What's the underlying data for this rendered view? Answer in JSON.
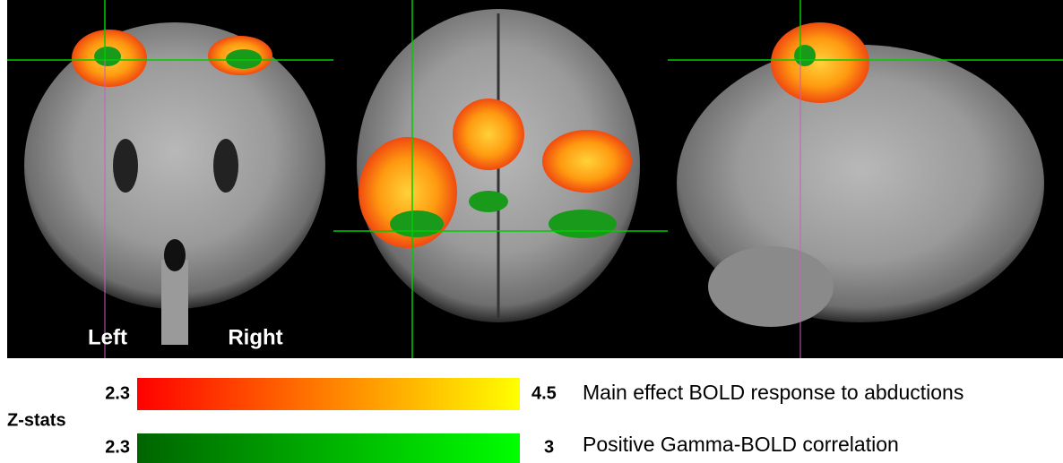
{
  "panels": {
    "labels": [
      "Left",
      "Right"
    ]
  },
  "legend": {
    "title": "Z-stats",
    "bars": [
      {
        "min": "2.3",
        "max": "4.5",
        "label": "Main effect BOLD response to abductions",
        "colors": [
          "#ff0000",
          "#ffff00"
        ]
      },
      {
        "min": "2.3",
        "max": "3",
        "label": "Positive Gamma-BOLD correlation",
        "colors": [
          "#006400",
          "#00ff00"
        ]
      }
    ]
  }
}
